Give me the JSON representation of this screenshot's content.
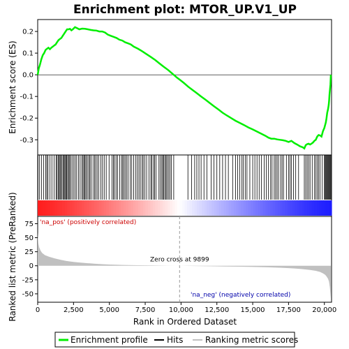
{
  "chart_data": {
    "type": "line",
    "title": "Enrichment plot: MTOR_UP.V1_UP",
    "xlabel": "Rank in Ordered Dataset",
    "es_panel": {
      "ylabel": "Enrichment score (ES)",
      "ylim": [
        -0.37,
        0.255
      ],
      "yticks": [
        -0.3,
        -0.2,
        -0.1,
        0.0,
        0.1,
        0.2
      ],
      "ytick_labels": [
        "-0.3",
        "-0.2",
        "-0.1",
        "0.0",
        "0.1",
        "0.2"
      ],
      "line_color": "#00ee00",
      "series": [
        {
          "x": [
            0,
            80,
            150,
            250,
            350,
            450,
            550,
            650,
            750,
            850,
            950,
            1050,
            1150,
            1250,
            1350,
            1450,
            1550,
            1650,
            1750,
            1850,
            1950,
            2050,
            2150,
            2250,
            2350,
            2450,
            2600,
            2750,
            2900,
            3100,
            3300,
            3500,
            3700,
            3900,
            4100,
            4300,
            4500,
            4700,
            4900,
            5100,
            5300,
            5500,
            5700,
            5900,
            6100,
            6300,
            6500,
            6700,
            7000,
            7300,
            7600,
            7900,
            8200,
            8500,
            8800,
            9100,
            9400,
            9700,
            9899,
            10200,
            10500,
            10800,
            11100,
            11400,
            11700,
            12000,
            12300,
            12600,
            12900,
            13200,
            13500,
            13800,
            14100,
            14400,
            14700,
            15000,
            15300,
            15600,
            15900,
            16100,
            16300,
            16500,
            16700,
            16900,
            17100,
            17300,
            17500,
            17700,
            17900,
            18100,
            18300,
            18500,
            18600,
            18700,
            18800,
            18900,
            19000,
            19100,
            19200,
            19300,
            19400,
            19500,
            19600,
            19700,
            19800,
            19900,
            20000,
            20100,
            20150,
            20200,
            20250,
            20300,
            20330,
            20360,
            20390,
            20420,
            20450
          ],
          "y": [
            0.0,
            0.03,
            0.045,
            0.07,
            0.09,
            0.1,
            0.115,
            0.12,
            0.125,
            0.118,
            0.125,
            0.13,
            0.135,
            0.14,
            0.15,
            0.16,
            0.165,
            0.17,
            0.18,
            0.19,
            0.2,
            0.21,
            0.21,
            0.212,
            0.205,
            0.21,
            0.22,
            0.215,
            0.21,
            0.213,
            0.212,
            0.21,
            0.207,
            0.205,
            0.204,
            0.2,
            0.2,
            0.195,
            0.185,
            0.18,
            0.175,
            0.17,
            0.162,
            0.158,
            0.15,
            0.145,
            0.14,
            0.13,
            0.12,
            0.108,
            0.095,
            0.082,
            0.068,
            0.052,
            0.037,
            0.022,
            0.005,
            -0.012,
            -0.022,
            -0.038,
            -0.055,
            -0.07,
            -0.085,
            -0.1,
            -0.115,
            -0.13,
            -0.145,
            -0.16,
            -0.175,
            -0.188,
            -0.2,
            -0.212,
            -0.222,
            -0.232,
            -0.243,
            -0.252,
            -0.262,
            -0.272,
            -0.282,
            -0.29,
            -0.295,
            -0.295,
            -0.298,
            -0.3,
            -0.302,
            -0.305,
            -0.31,
            -0.305,
            -0.315,
            -0.322,
            -0.33,
            -0.335,
            -0.34,
            -0.325,
            -0.32,
            -0.318,
            -0.322,
            -0.318,
            -0.313,
            -0.305,
            -0.3,
            -0.285,
            -0.278,
            -0.28,
            -0.285,
            -0.26,
            -0.245,
            -0.22,
            -0.2,
            -0.175,
            -0.16,
            -0.14,
            -0.12,
            -0.09,
            -0.07,
            -0.045,
            0.0
          ]
        }
      ]
    },
    "hits_panel": {
      "hit_color": "#000000",
      "hit_ranks": [
        20,
        130,
        260,
        420,
        560,
        640,
        720,
        860,
        990,
        1140,
        1280,
        1350,
        1430,
        1500,
        1560,
        1620,
        1700,
        1790,
        1840,
        1900,
        1960,
        2020,
        2090,
        2160,
        2230,
        2300,
        2400,
        2520,
        2620,
        2720,
        2850,
        2960,
        3080,
        3160,
        3230,
        3300,
        3370,
        3460,
        3560,
        3640,
        3730,
        3860,
        3970,
        4050,
        4150,
        4260,
        4400,
        4520,
        4640,
        4780,
        4980,
        5180,
        5280,
        5360,
        5470,
        5580,
        5720,
        5850,
        5930,
        6020,
        6100,
        6200,
        6300,
        6450,
        6560,
        6700,
        6830,
        6950,
        7060,
        7160,
        7290,
        7360,
        7480,
        7600,
        7760,
        7890,
        7960,
        8080,
        8150,
        8260,
        8460,
        8560,
        8660,
        8730,
        8800,
        8890,
        8960,
        9030,
        9140,
        9230,
        9320,
        9490,
        10480,
        10740,
        10950,
        11100,
        11250,
        11400,
        11600,
        11800,
        12100,
        12300,
        12500,
        12700,
        12900,
        13100,
        13300,
        13600,
        13800,
        13950,
        14100,
        14250,
        14350,
        14480,
        14600,
        14800,
        15000,
        15150,
        15300,
        15450,
        15600,
        15800,
        15950,
        16100,
        16250,
        16350,
        16500,
        16600,
        16700,
        16800,
        16950,
        17050,
        17150,
        17350,
        17500,
        17600,
        17700,
        17850,
        18000,
        18200,
        18600,
        18700,
        18800,
        18900,
        19000,
        19150,
        19300,
        19400,
        19500,
        19600,
        19700,
        19850,
        20000,
        20050,
        20100,
        20150,
        20200,
        20250,
        20300,
        20350,
        20400,
        20450
      ]
    },
    "metric_panel": {
      "ylabel": "Ranked list metric (PreRanked)",
      "ylim": [
        -65,
        88
      ],
      "yticks": [
        -50,
        -25,
        0,
        25,
        50,
        75
      ],
      "ytick_labels": [
        "-50",
        "-25",
        "0",
        "25",
        "50",
        "75"
      ],
      "fill_color": "#c0c0c0",
      "series": [
        {
          "x": [
            0,
            20,
            50,
            100,
            200,
            300,
            500,
            800,
            1200,
            1600,
            2000,
            2500,
            3000,
            3500,
            4000,
            4500,
            5000,
            6000,
            7000,
            8000,
            9000,
            9899,
            11000,
            12000,
            13000,
            14000,
            15000,
            16000,
            16500,
            17000,
            17500,
            18000,
            18500,
            19000,
            19400,
            19700,
            19900,
            20050,
            20150,
            20250,
            20320,
            20380,
            20420,
            20450
          ],
          "y": [
            60,
            50,
            40,
            33,
            27,
            23,
            19,
            16,
            13,
            10.5,
            8.5,
            6.8,
            5.5,
            4.5,
            3.6,
            2.8,
            2.2,
            1.4,
            0.9,
            0.5,
            0.2,
            0,
            -0.4,
            -0.8,
            -1.2,
            -1.6,
            -2.1,
            -2.7,
            -3.1,
            -3.6,
            -4.2,
            -5.0,
            -6.0,
            -7.5,
            -9,
            -11,
            -13.5,
            -16,
            -19,
            -23,
            -28,
            -38,
            -50,
            -58
          ]
        }
      ],
      "zero_cross_label": "Zero cross at 9899",
      "zero_cross_rank": 9899,
      "pos_label": "'na_pos' (positively correlated)",
      "neg_label": "'na_neg' (negatively correlated)"
    },
    "x_axis": {
      "xlim": [
        0,
        20500
      ],
      "xticks": [
        0,
        2500,
        5000,
        7500,
        10000,
        12500,
        15000,
        17500,
        20000
      ],
      "xtick_labels": [
        "0",
        "2,500",
        "5,000",
        "7,500",
        "10,000",
        "12,500",
        "15,000",
        "17,500",
        "20,000"
      ]
    },
    "legend": {
      "entries": [
        {
          "label": "Enrichment profile",
          "color": "#00ee00"
        },
        {
          "label": "Hits",
          "color": "#000000"
        },
        {
          "label": "Ranking metric scores",
          "color": "#c0c0c0"
        }
      ]
    }
  }
}
